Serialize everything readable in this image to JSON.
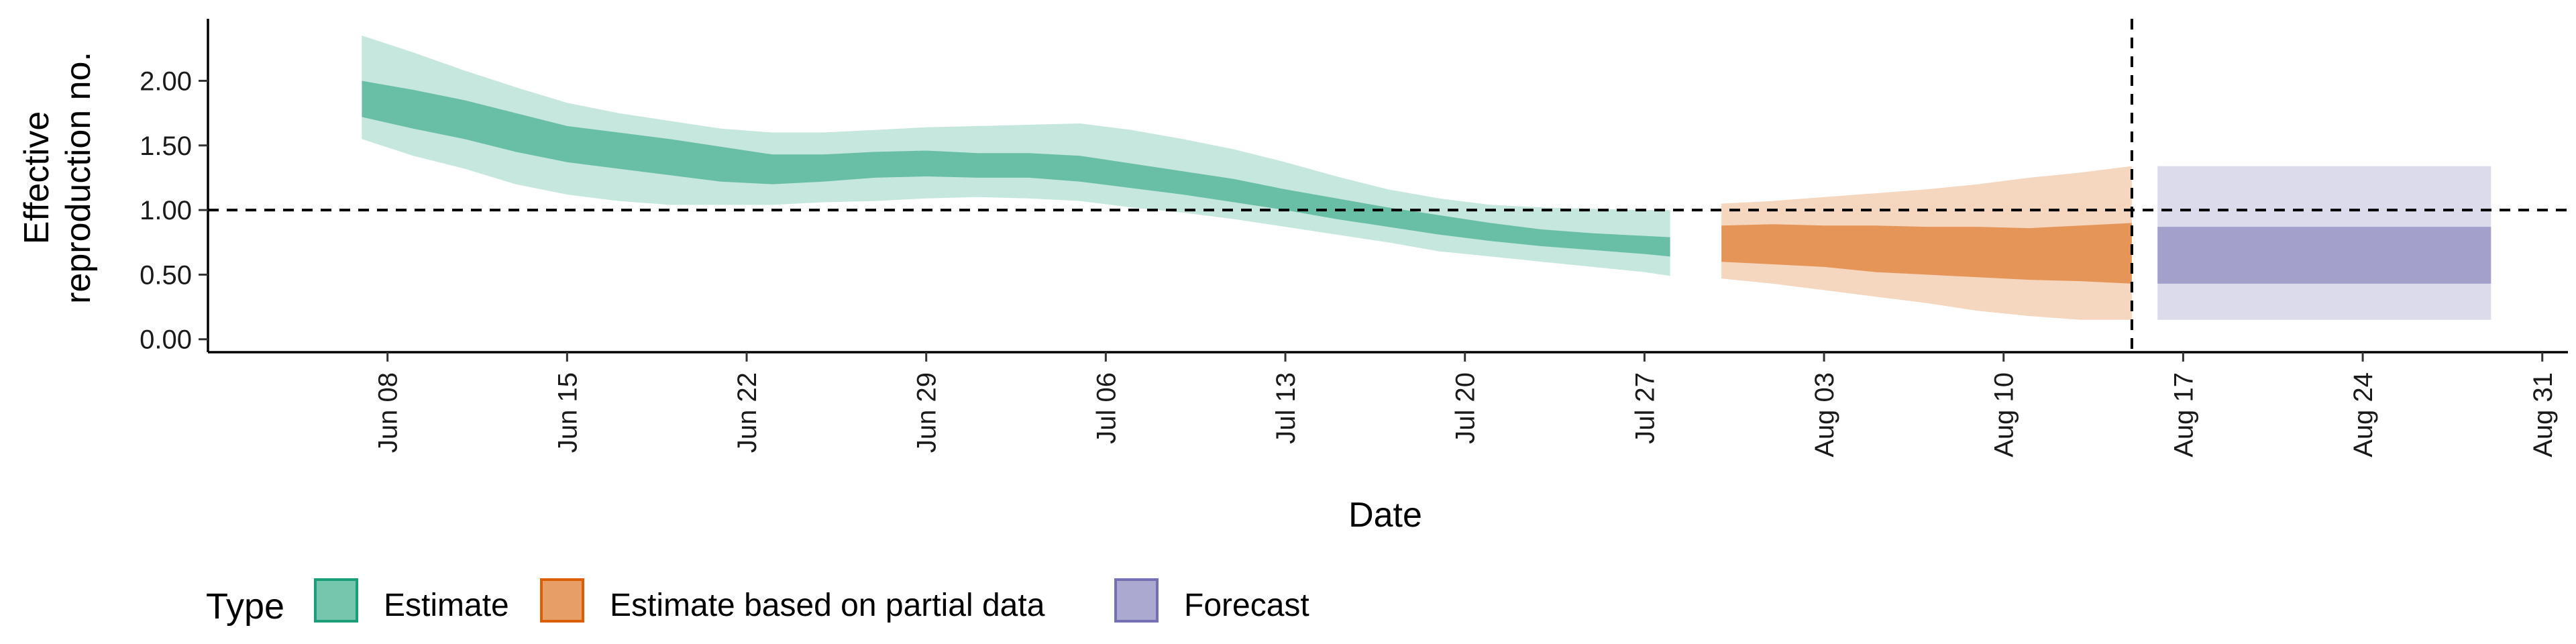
{
  "chart_data": {
    "type": "area",
    "xlabel": "Date",
    "ylabel_lines": [
      "Effective",
      "reproduction no."
    ],
    "x_axis": {
      "range": [
        "2020-06-01",
        "2020-09-01"
      ],
      "ticks": [
        "2020-06-08",
        "2020-06-15",
        "2020-06-22",
        "2020-06-29",
        "2020-07-06",
        "2020-07-13",
        "2020-07-20",
        "2020-07-27",
        "2020-08-03",
        "2020-08-10",
        "2020-08-17",
        "2020-08-24",
        "2020-08-31"
      ],
      "tick_labels": [
        "Jun 08",
        "Jun 15",
        "Jun 22",
        "Jun 29",
        "Jul 06",
        "Jul 13",
        "Jul 20",
        "Jul 27",
        "Aug 03",
        "Aug 10",
        "Aug 17",
        "Aug 24",
        "Aug 31"
      ]
    },
    "y_axis": {
      "ylim": [
        -0.1,
        2.48
      ],
      "ticks": [
        0,
        0.5,
        1,
        1.5,
        2
      ],
      "tick_labels": [
        "0.00",
        "0.50",
        "1.00",
        "1.50",
        "2.00"
      ]
    },
    "reference_lines": {
      "horizontal_y": 1.0,
      "vertical_date": "2020-08-15"
    },
    "grid": false,
    "legend": {
      "title": "Type",
      "position": "bottom-left",
      "entries": [
        "Estimate",
        "Estimate based on partial data",
        "Forecast"
      ]
    },
    "series": [
      {
        "name": "Estimate",
        "color": "#1b9e77",
        "dates": [
          "2020-06-07",
          "2020-06-09",
          "2020-06-11",
          "2020-06-13",
          "2020-06-15",
          "2020-06-17",
          "2020-06-19",
          "2020-06-21",
          "2020-06-23",
          "2020-06-25",
          "2020-06-27",
          "2020-06-29",
          "2020-07-01",
          "2020-07-03",
          "2020-07-05",
          "2020-07-07",
          "2020-07-09",
          "2020-07-11",
          "2020-07-13",
          "2020-07-15",
          "2020-07-17",
          "2020-07-19",
          "2020-07-21",
          "2020-07-23",
          "2020-07-25",
          "2020-07-27",
          "2020-07-28"
        ],
        "outer_lower": [
          1.55,
          1.42,
          1.32,
          1.2,
          1.12,
          1.07,
          1.04,
          1.04,
          1.04,
          1.06,
          1.07,
          1.09,
          1.1,
          1.09,
          1.07,
          1.02,
          0.98,
          0.93,
          0.87,
          0.81,
          0.75,
          0.68,
          0.64,
          0.6,
          0.56,
          0.52,
          0.49
        ],
        "inner_lower": [
          1.72,
          1.63,
          1.55,
          1.45,
          1.37,
          1.32,
          1.27,
          1.22,
          1.2,
          1.22,
          1.25,
          1.26,
          1.25,
          1.25,
          1.22,
          1.17,
          1.12,
          1.06,
          1.0,
          0.93,
          0.87,
          0.81,
          0.76,
          0.72,
          0.69,
          0.66,
          0.64
        ],
        "inner_upper": [
          2.0,
          1.93,
          1.85,
          1.75,
          1.65,
          1.6,
          1.55,
          1.49,
          1.43,
          1.43,
          1.45,
          1.46,
          1.44,
          1.44,
          1.42,
          1.36,
          1.3,
          1.24,
          1.16,
          1.09,
          1.02,
          0.96,
          0.9,
          0.85,
          0.82,
          0.8,
          0.79
        ],
        "outer_upper": [
          2.35,
          2.22,
          2.08,
          1.95,
          1.83,
          1.75,
          1.69,
          1.63,
          1.6,
          1.6,
          1.62,
          1.64,
          1.65,
          1.66,
          1.67,
          1.62,
          1.55,
          1.47,
          1.37,
          1.26,
          1.16,
          1.09,
          1.04,
          1.02,
          1.01,
          1.0,
          1.0
        ]
      },
      {
        "name": "Estimate based on partial data",
        "color": "#d95f02",
        "dates": [
          "2020-07-30",
          "2020-08-01",
          "2020-08-03",
          "2020-08-05",
          "2020-08-07",
          "2020-08-09",
          "2020-08-11",
          "2020-08-13",
          "2020-08-15"
        ],
        "outer_lower": [
          0.47,
          0.43,
          0.38,
          0.33,
          0.28,
          0.22,
          0.18,
          0.15,
          0.15
        ],
        "inner_lower": [
          0.6,
          0.58,
          0.56,
          0.52,
          0.5,
          0.48,
          0.46,
          0.45,
          0.43
        ],
        "inner_upper": [
          0.88,
          0.89,
          0.88,
          0.88,
          0.87,
          0.87,
          0.86,
          0.88,
          0.9
        ],
        "outer_upper": [
          1.05,
          1.07,
          1.1,
          1.13,
          1.16,
          1.2,
          1.25,
          1.29,
          1.34
        ]
      },
      {
        "name": "Forecast",
        "color": "#7570b3",
        "dates": [
          "2020-08-16",
          "2020-08-29"
        ],
        "outer_lower": [
          0.15,
          0.15
        ],
        "inner_lower": [
          0.43,
          0.43
        ],
        "inner_upper": [
          0.87,
          0.87
        ],
        "outer_upper": [
          1.34,
          1.34
        ]
      }
    ]
  }
}
